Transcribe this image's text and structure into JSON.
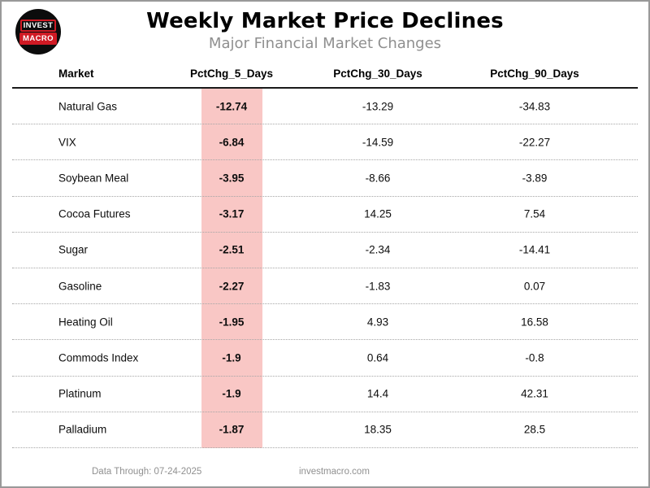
{
  "logo": {
    "top": "INVEST",
    "bottom": "MACRO",
    "red": "#d01a24"
  },
  "header": {
    "title": "Weekly Market Price Declines",
    "subtitle": "Major Financial Market Changes"
  },
  "footer": {
    "data_through": "Data Through: 07-24-2025",
    "website": "investmacro.com"
  },
  "colors": {
    "highlight_pink": "#f9c7c5",
    "subtitle_gray": "#8f8f8f",
    "page_border_gray": "#999999",
    "logo_red": "#d01a24"
  },
  "chart_data": {
    "type": "table",
    "title": "Weekly Market Price Declines",
    "subtitle": "Major Financial Market Changes",
    "columns": [
      "Market",
      "PctChg_5_Days",
      "PctChg_30_Days",
      "PctChg_90_Days"
    ],
    "highlighted_column": "PctChg_5_Days",
    "rows": [
      {
        "market": "Natural Gas",
        "pctchg_5_days": -12.74,
        "pctchg_30_days": -13.29,
        "pctchg_90_days": -34.83
      },
      {
        "market": "VIX",
        "pctchg_5_days": -6.84,
        "pctchg_30_days": -14.59,
        "pctchg_90_days": -22.27
      },
      {
        "market": "Soybean Meal",
        "pctchg_5_days": -3.95,
        "pctchg_30_days": -8.66,
        "pctchg_90_days": -3.89
      },
      {
        "market": "Cocoa Futures",
        "pctchg_5_days": -3.17,
        "pctchg_30_days": 14.25,
        "pctchg_90_days": 7.54
      },
      {
        "market": "Sugar",
        "pctchg_5_days": -2.51,
        "pctchg_30_days": -2.34,
        "pctchg_90_days": -14.41
      },
      {
        "market": "Gasoline",
        "pctchg_5_days": -2.27,
        "pctchg_30_days": -1.83,
        "pctchg_90_days": 0.07
      },
      {
        "market": "Heating Oil",
        "pctchg_5_days": -1.95,
        "pctchg_30_days": 4.93,
        "pctchg_90_days": 16.58
      },
      {
        "market": "Commods Index",
        "pctchg_5_days": -1.9,
        "pctchg_30_days": 0.64,
        "pctchg_90_days": -0.8
      },
      {
        "market": "Platinum",
        "pctchg_5_days": -1.9,
        "pctchg_30_days": 14.4,
        "pctchg_90_days": 42.31
      },
      {
        "market": "Palladium",
        "pctchg_5_days": -1.87,
        "pctchg_30_days": 18.35,
        "pctchg_90_days": 28.5
      }
    ]
  }
}
